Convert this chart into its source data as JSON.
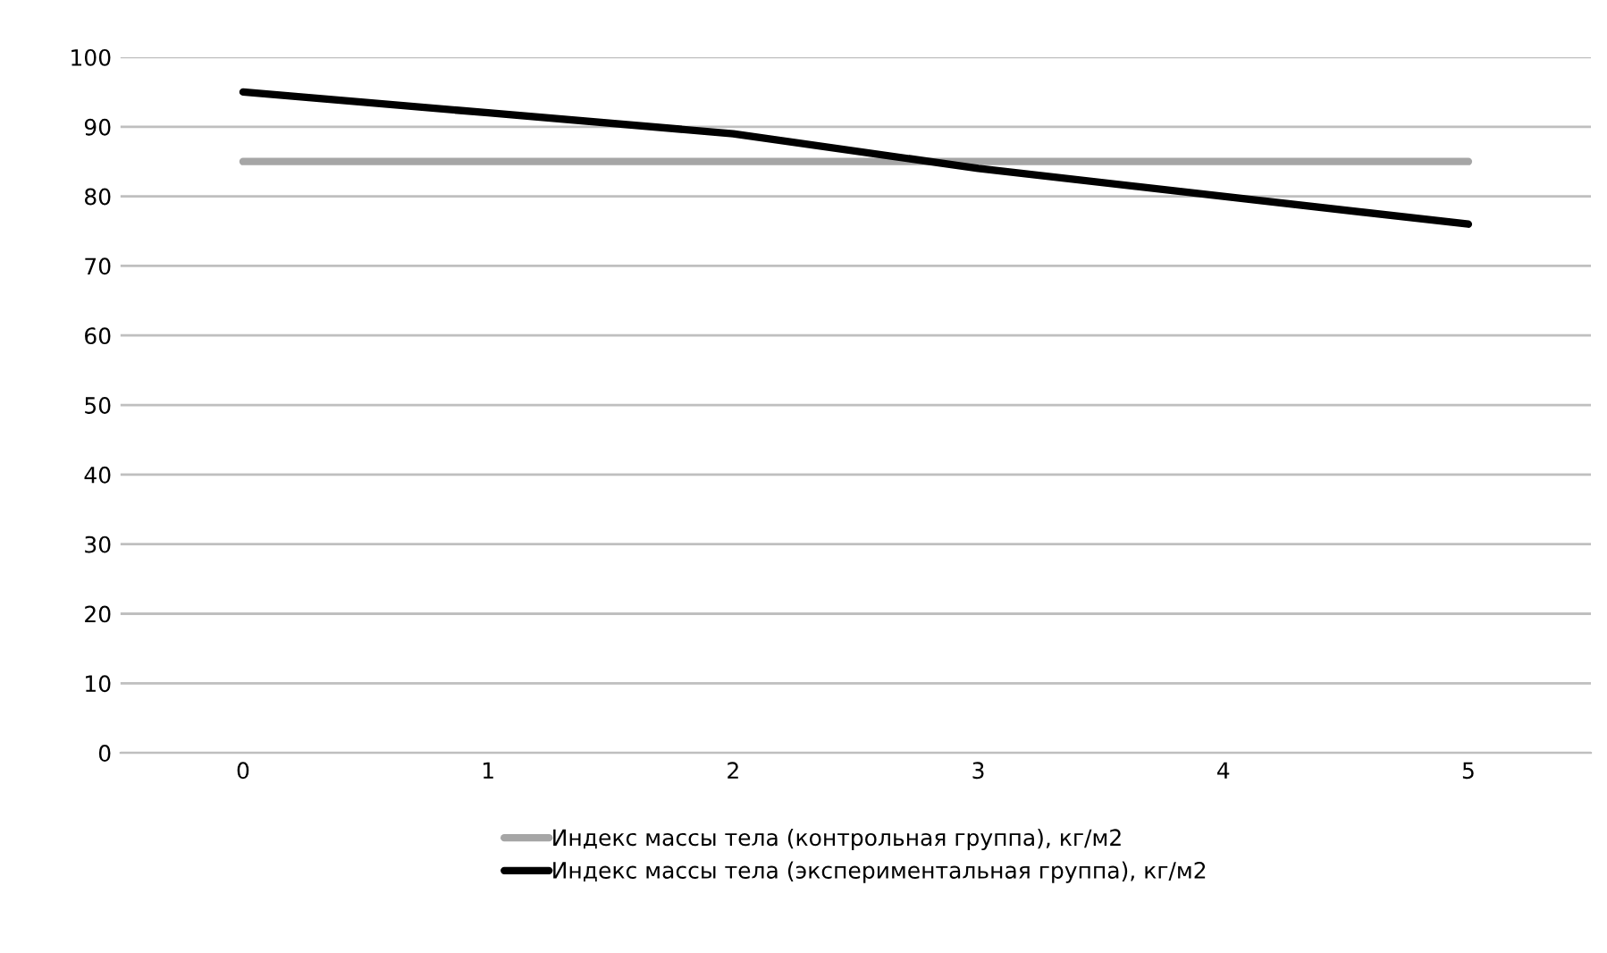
{
  "chart_data": {
    "type": "line",
    "categories": [
      "0",
      "1",
      "2",
      "3",
      "4",
      "5"
    ],
    "series": [
      {
        "name": "Индекс массы тела (контрольная группа), кг/м2",
        "color": "#a6a6a6",
        "values": [
          85,
          85,
          85,
          85,
          85,
          85
        ]
      },
      {
        "name": "Индекс массы тела (экспериментальная группа), кг/м2",
        "color": "#000000",
        "values": [
          95,
          92,
          89,
          84,
          80,
          76
        ]
      }
    ],
    "ylim": [
      0,
      100
    ],
    "yticks": [
      0,
      10,
      20,
      30,
      40,
      50,
      60,
      70,
      80,
      90,
      100
    ],
    "grid": "y",
    "legend": "bottom",
    "marker": "none"
  }
}
